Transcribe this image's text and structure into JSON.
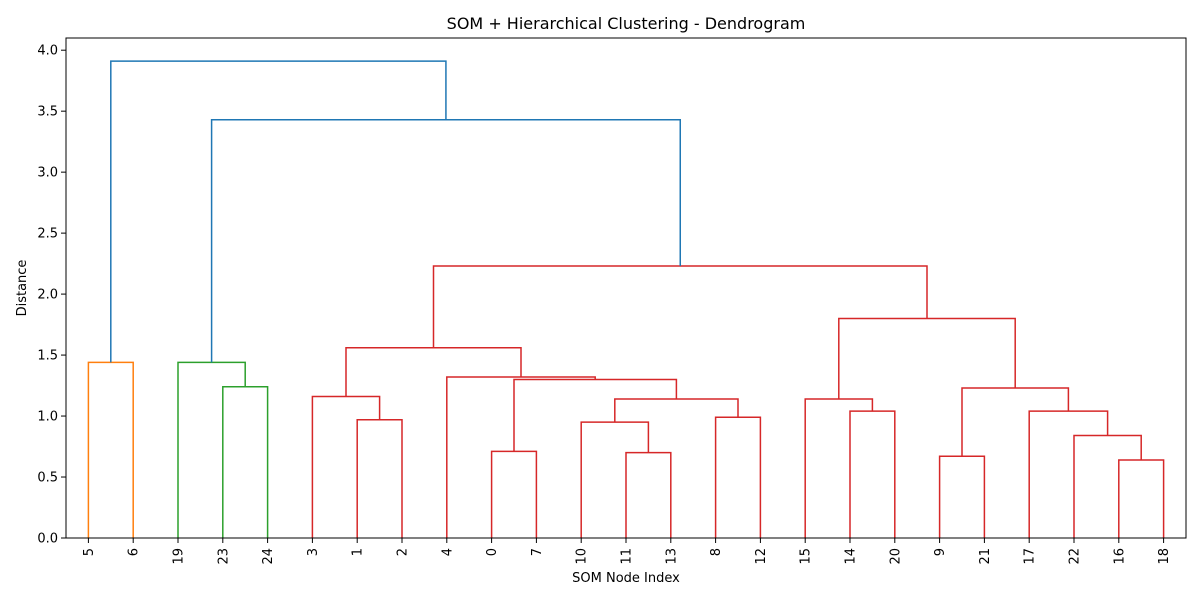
{
  "chart_data": {
    "type": "dendrogram",
    "title": "SOM + Hierarchical Clustering - Dendrogram",
    "xlabel": "SOM Node Index",
    "ylabel": "Distance",
    "ylim": [
      0,
      4.1
    ],
    "yticks": [
      0.0,
      0.5,
      1.0,
      1.5,
      2.0,
      2.5,
      3.0,
      3.5,
      4.0
    ],
    "grid": false,
    "leaves": [
      "5",
      "6",
      "19",
      "23",
      "24",
      "3",
      "1",
      "2",
      "4",
      "0",
      "7",
      "10",
      "11",
      "13",
      "8",
      "12",
      "15",
      "14",
      "20",
      "9",
      "21",
      "17",
      "22",
      "16",
      "18"
    ],
    "colors": {
      "orange": "#ff7f0e",
      "green": "#2ca02c",
      "red": "#d62728",
      "blue": "#1f77b4"
    },
    "links": [
      {
        "left": 0,
        "right": 1,
        "height": 1.44,
        "color": "orange"
      },
      {
        "left": 3,
        "right": 4,
        "height": 1.24,
        "color": "green"
      },
      {
        "left": 2,
        "right": 3.5,
        "height": 1.44,
        "color": "green"
      },
      {
        "left": 6,
        "right": 7,
        "height": 0.97,
        "color": "red"
      },
      {
        "left": 5,
        "right": 6.5,
        "height": 1.16,
        "color": "red"
      },
      {
        "left": 9,
        "right": 10,
        "height": 0.71,
        "color": "red"
      },
      {
        "left": 12,
        "right": 13,
        "height": 0.7,
        "color": "red"
      },
      {
        "left": 11,
        "right": 12.5,
        "height": 0.95,
        "color": "red"
      },
      {
        "left": 14,
        "right": 15,
        "height": 0.99,
        "color": "red"
      },
      {
        "left": 11.75,
        "right": 14.5,
        "height": 1.14,
        "color": "red"
      },
      {
        "left": 9.5,
        "right": 13.125,
        "height": 1.3,
        "color": "red"
      },
      {
        "left": 8,
        "right": 11.3125,
        "height": 1.32,
        "color": "red"
      },
      {
        "left": 5.75,
        "right": 9.65625,
        "height": 1.56,
        "color": "red"
      },
      {
        "left": 17,
        "right": 18,
        "height": 1.04,
        "color": "red"
      },
      {
        "left": 16,
        "right": 17.5,
        "height": 1.14,
        "color": "red"
      },
      {
        "left": 19,
        "right": 20,
        "height": 0.67,
        "color": "red"
      },
      {
        "left": 23,
        "right": 24,
        "height": 0.64,
        "color": "red"
      },
      {
        "left": 22,
        "right": 23.5,
        "height": 0.84,
        "color": "red"
      },
      {
        "left": 21,
        "right": 22.75,
        "height": 1.04,
        "color": "red"
      },
      {
        "left": 19.5,
        "right": 21.875,
        "height": 1.23,
        "color": "red"
      },
      {
        "left": 16.75,
        "right": 20.6875,
        "height": 1.8,
        "color": "red"
      },
      {
        "left": 7.703125,
        "right": 18.71875,
        "height": 2.23,
        "color": "red"
      },
      {
        "left": 2.75,
        "right": 13.2109375,
        "height": 3.43,
        "color": "blue"
      },
      {
        "left": 0.5,
        "right": 7.98046875,
        "height": 3.91,
        "color": "blue"
      }
    ]
  }
}
